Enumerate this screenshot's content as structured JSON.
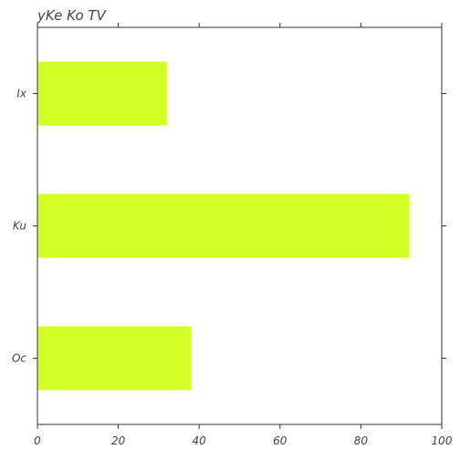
{
  "chart_data": {
    "type": "bar",
    "orientation": "horizontal",
    "title": "yKe Ko  TV",
    "categories": [
      "Ix",
      "Ku",
      "Oc"
    ],
    "values": [
      32,
      92,
      38
    ],
    "xlim": [
      0,
      100
    ],
    "xticks": [
      "0",
      "20",
      "40",
      "60",
      "80",
      "100"
    ],
    "xlabel": "",
    "ylabel": "",
    "grid": false,
    "bar_color": "#d4ff26"
  }
}
